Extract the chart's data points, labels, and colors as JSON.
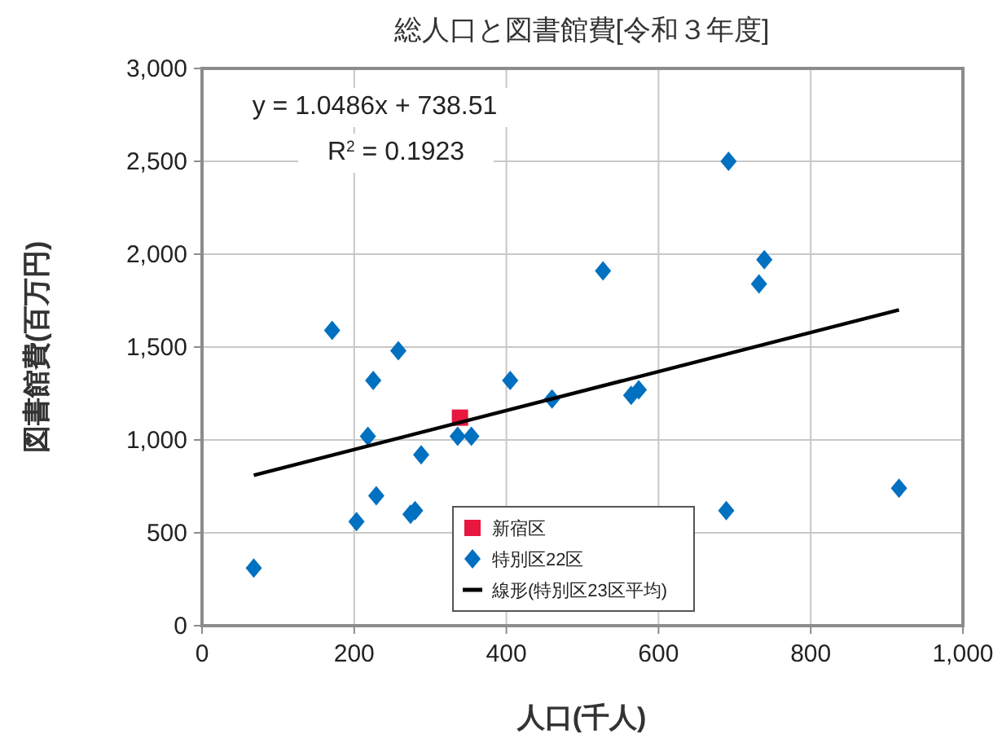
{
  "chart_data": {
    "type": "scatter",
    "title": "総人口と図書館費[令和３年度]",
    "xlabel": "人口(千人)",
    "ylabel": "図書館費(百万円)",
    "annotations": [
      "y = 1.0486x + 738.51",
      "R$^{2}$ = 0.1923"
    ],
    "series": [
      {
        "name": "新宿区",
        "color": "#e8173f",
        "marker": "square",
        "x": [
          339
        ],
        "values": [
          1120
        ]
      },
      {
        "name": "特別区22区",
        "color": "#0070c0",
        "marker": "diamond",
        "x": [
          68,
          171,
          258,
          225,
          405,
          460,
          564,
          574,
          218,
          336,
          354,
          288,
          229,
          274,
          280,
          203,
          689,
          916,
          692,
          739,
          732,
          527
        ],
        "values": [
          310,
          1590,
          1480,
          1320,
          1320,
          1220,
          1240,
          1270,
          1020,
          1020,
          1020,
          920,
          700,
          600,
          620,
          560,
          620,
          740,
          2500,
          1970,
          1840,
          1910
        ]
      },
      {
        "name": "線形(特別区23区平均)",
        "type": "line",
        "color": "#000000",
        "marker": "none",
        "x": [
          68,
          916
        ],
        "values": [
          810,
          1700
        ]
      }
    ],
    "xlim": [
      0,
      1000
    ],
    "xticks": [
      0,
      200,
      400,
      600,
      800,
      {
        "value": 1000,
        "label": "1,000"
      }
    ],
    "ylim": [
      0,
      3000
    ],
    "yticks": [
      0,
      500,
      {
        "value": 1000,
        "label": "1,000"
      },
      {
        "value": 1500,
        "label": "1,500"
      },
      {
        "value": 2000,
        "label": "2,000"
      },
      {
        "value": 2500,
        "label": "2,500"
      },
      {
        "value": 3000,
        "label": "3,000"
      }
    ],
    "grid": true,
    "legend": "bottom"
  }
}
